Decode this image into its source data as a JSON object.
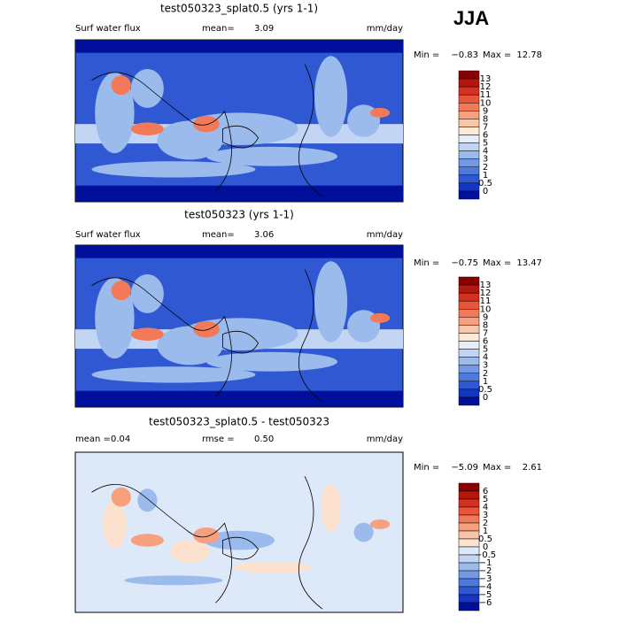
{
  "season": "JJA",
  "panels": [
    {
      "title": "test050323_splat0.5 (yrs 1-1)",
      "left_label": "Surf water flux",
      "stats": [
        {
          "label": "mean=",
          "value": "3.09"
        }
      ],
      "units": "mm/day",
      "range": {
        "min_label": "Min =",
        "min": "−0.83",
        "max_label": "Max =",
        "max": "12.78"
      },
      "colorbar": {
        "labels": [
          "13",
          "12",
          "11",
          "10",
          "9",
          "8",
          "7",
          "6",
          "5",
          "4",
          "3",
          "2",
          "1",
          "0.5",
          "0"
        ],
        "colors": [
          "#8b0000",
          "#b5170f",
          "#d7301f",
          "#e8553a",
          "#f27a58",
          "#f6a07e",
          "#fac6a8",
          "#fde9d6",
          "#e6eefa",
          "#c2d5f3",
          "#9bbbec",
          "#7399e4",
          "#4f79dc",
          "#2f58d2",
          "#1536c4",
          "#00109a"
        ]
      },
      "map_style": "flux"
    },
    {
      "title": "test050323 (yrs 1-1)",
      "left_label": "Surf water flux",
      "stats": [
        {
          "label": "mean=",
          "value": "3.06"
        }
      ],
      "units": "mm/day",
      "range": {
        "min_label": "Min =",
        "min": "−0.75",
        "max_label": "Max =",
        "max": "13.47"
      },
      "colorbar": {
        "labels": [
          "13",
          "12",
          "11",
          "10",
          "9",
          "8",
          "7",
          "6",
          "5",
          "4",
          "3",
          "2",
          "1",
          "0.5",
          "0"
        ],
        "colors": [
          "#8b0000",
          "#b5170f",
          "#d7301f",
          "#e8553a",
          "#f27a58",
          "#f6a07e",
          "#fac6a8",
          "#fde9d6",
          "#e6eefa",
          "#c2d5f3",
          "#9bbbec",
          "#7399e4",
          "#4f79dc",
          "#2f58d2",
          "#1536c4",
          "#00109a"
        ]
      },
      "map_style": "flux"
    },
    {
      "title": "test050323_splat0.5 - test050323",
      "stats": [
        {
          "label": "mean =",
          "value": "0.04"
        },
        {
          "label": "rmse =",
          "value": "0.50"
        }
      ],
      "units": "mm/day",
      "range": {
        "min_label": "Min =",
        "min": "−5.09",
        "max_label": "Max =",
        "max": "2.61"
      },
      "colorbar": {
        "labels": [
          "6",
          "5",
          "4",
          "3",
          "2",
          "1",
          "0.5",
          "0",
          "−0.5",
          "−1",
          "−2",
          "−3",
          "−4",
          "−5",
          "−6"
        ],
        "colors": [
          "#8b0000",
          "#b5170f",
          "#d7301f",
          "#e8553a",
          "#f27a58",
          "#f6a07e",
          "#fac6a8",
          "#fde3cf",
          "#dde8f8",
          "#c2d5f3",
          "#9bbbec",
          "#7399e4",
          "#4f79dc",
          "#2f58d2",
          "#1536c4",
          "#00109a"
        ]
      },
      "map_style": "diff"
    }
  ]
}
